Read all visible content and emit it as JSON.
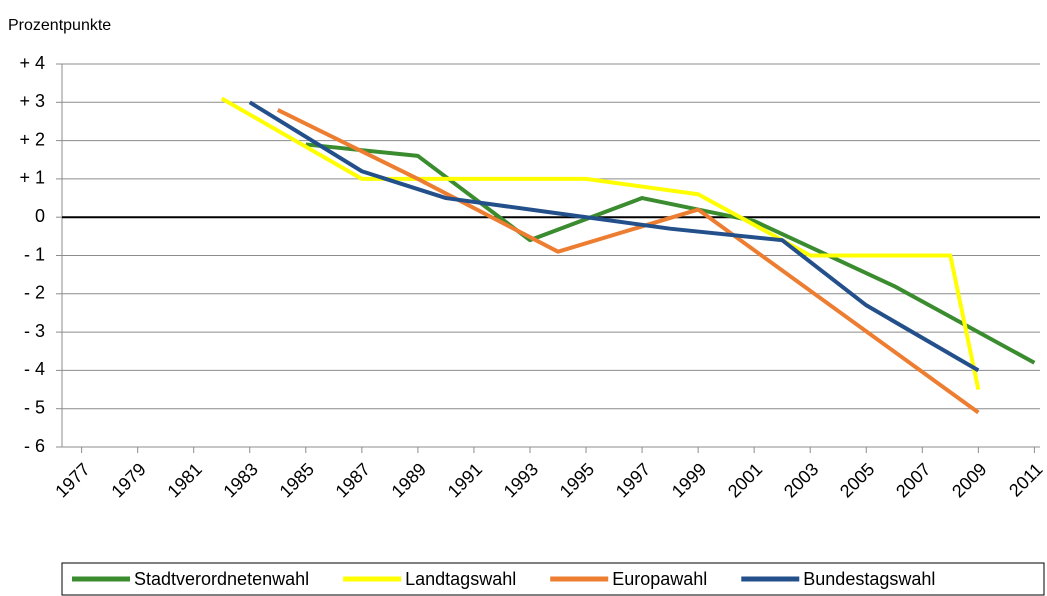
{
  "chart_data": {
    "type": "line",
    "ylabel": "Prozentpunkte",
    "xlim": [
      1976.3,
      2011.2
    ],
    "xticks": [
      1977,
      1979,
      1981,
      1983,
      1985,
      1987,
      1989,
      1991,
      1993,
      1995,
      1997,
      1999,
      2001,
      2003,
      2005,
      2007,
      2009,
      2011
    ],
    "ylim": [
      -6,
      4
    ],
    "yticks": [
      {
        "value": 4,
        "label": "+ 4"
      },
      {
        "value": 3,
        "label": "+ 3"
      },
      {
        "value": 2,
        "label": "+ 2"
      },
      {
        "value": 1,
        "label": "+ 1"
      },
      0,
      {
        "value": -1,
        "label": "- 1"
      },
      {
        "value": -2,
        "label": "- 2"
      },
      {
        "value": -3,
        "label": "- 3"
      },
      {
        "value": -4,
        "label": "- 4"
      },
      {
        "value": -5,
        "label": "- 5"
      },
      {
        "value": -6,
        "label": "- 6"
      }
    ],
    "grid": true,
    "legend": "bottom",
    "series": [
      {
        "name": "Stadtverordnetenwahl",
        "color": "#3a8c2f",
        "x": [
          1985,
          1989,
          1993,
          1997,
          2001,
          2006,
          2011
        ],
        "values": [
          1.9,
          1.6,
          -0.6,
          0.5,
          -0.1,
          -1.8,
          -3.8
        ]
      },
      {
        "name": "Landtagswahl",
        "color": "#ffff00",
        "x": [
          1982,
          1987,
          1991,
          1995,
          1999,
          2003,
          2008,
          2009
        ],
        "values": [
          3.1,
          1.0,
          1.0,
          1.0,
          0.6,
          -1.0,
          -1.0,
          -4.5
        ]
      },
      {
        "name": "Europawahl",
        "color": "#ed7d31",
        "x": [
          1984,
          1989,
          1994,
          1999,
          2009
        ],
        "values": [
          2.8,
          1.0,
          -0.9,
          0.2,
          -5.1
        ]
      },
      {
        "name": "Bundestagswahl",
        "color": "#23508a",
        "x": [
          1983,
          1987,
          1990,
          1994,
          1998,
          2002,
          2005,
          2009
        ],
        "values": [
          3.0,
          1.2,
          0.5,
          0.1,
          -0.3,
          -0.6,
          -2.3,
          -4.0
        ]
      }
    ]
  }
}
